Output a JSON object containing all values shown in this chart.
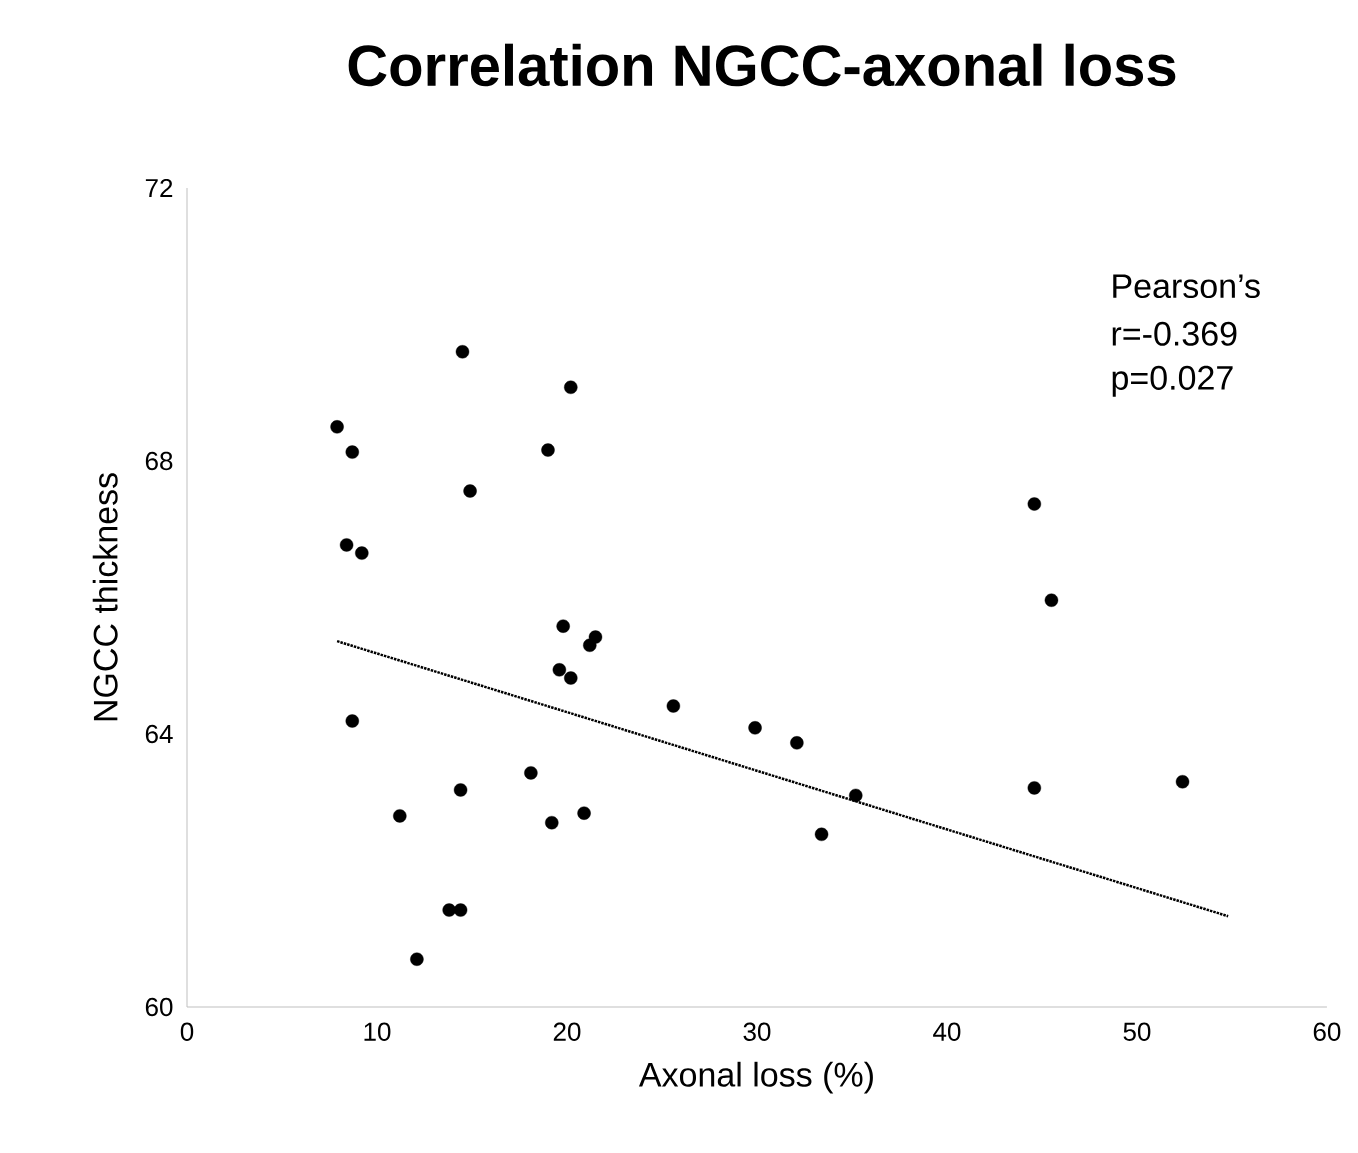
{
  "chart_data": {
    "type": "scatter",
    "title": "Correlation NGCC-axonal loss",
    "xlabel": "Axonal loss (%)",
    "ylabel": "NGCC thickness",
    "xlim": [
      0,
      60
    ],
    "xticks": [
      0,
      10,
      20,
      30,
      40,
      50,
      60
    ],
    "ylim": [
      60,
      72
    ],
    "yticks": [
      60,
      64,
      68,
      72
    ],
    "annotations": [
      "Pearson’s",
      "r=-0.369",
      "p=0.027"
    ],
    "series": [
      {
        "color": "#000000",
        "marker": "circle",
        "x": [
          7.9,
          8.7,
          8.4,
          9.2,
          8.7,
          11.2,
          12.1,
          13.8,
          14.4,
          14.4,
          14.5,
          14.9,
          18.1,
          19.0,
          19.2,
          19.6,
          19.8,
          20.2,
          20.2,
          20.9,
          21.2,
          21.5,
          25.6,
          29.9,
          32.1,
          33.4,
          35.2,
          44.6,
          44.6,
          45.5,
          52.4
        ],
        "values": [
          68.5,
          68.13,
          66.77,
          66.65,
          64.19,
          62.8,
          60.7,
          61.42,
          61.42,
          63.18,
          69.6,
          67.56,
          63.43,
          68.16,
          62.7,
          64.94,
          65.58,
          69.08,
          64.82,
          62.84,
          65.3,
          65.42,
          64.41,
          64.09,
          63.87,
          62.53,
          63.1,
          67.37,
          63.21,
          65.96,
          63.3
        ]
      },
      {
        "type": "line",
        "color": "#000000",
        "marker": "none",
        "line_style": "dotted",
        "x": [
          7.9,
          54.8
        ],
        "values": [
          65.36,
          61.33
        ]
      }
    ]
  }
}
